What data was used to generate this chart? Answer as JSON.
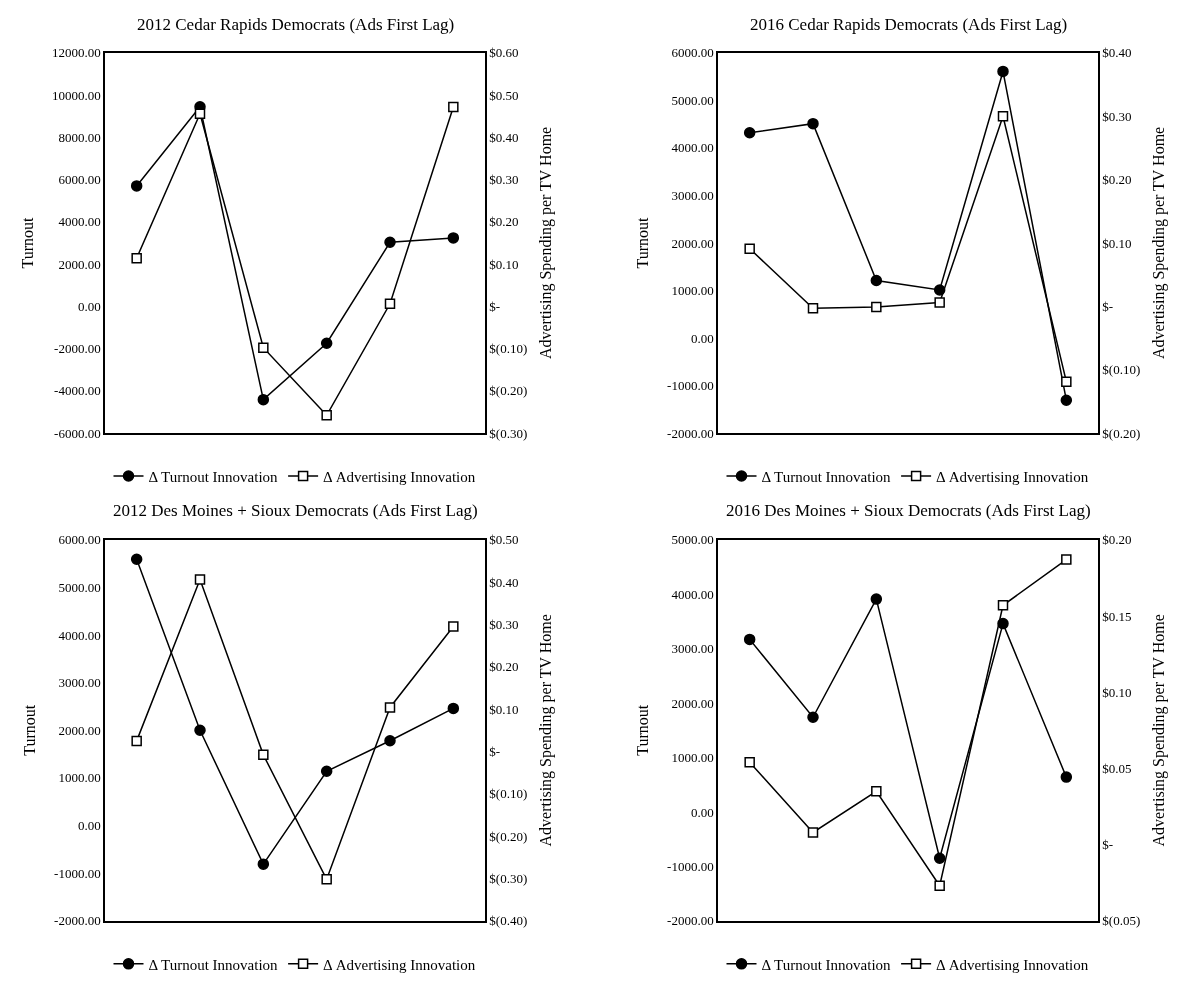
{
  "chart_data": [
    {
      "type": "line",
      "title": "2012 Cedar Rapids Democrats (Ads First Lag)",
      "ylabel": "Turnout",
      "y2label": "Advertising Spending per TV Home",
      "categories": [
        null,
        null,
        null,
        null,
        null,
        null
      ],
      "legend": "bottom",
      "series": [
        {
          "name": "Δ Turnout Innovation",
          "color": "#000000",
          "marker": "circle",
          "values": [
            5700,
            9450,
            -4420,
            -1750,
            3030,
            3240
          ]
        },
        {
          "name": "Δ Advertising Innovation",
          "color": "#000000",
          "marker": "square",
          "axis": "y2",
          "values": [
            0.114,
            0.456,
            -0.098,
            -0.258,
            0.006,
            0.472
          ]
        }
      ],
      "ylim": [
        -6000,
        12000
      ],
      "yticks": [
        {
          "value": -6000,
          "label": "-6000.00"
        },
        {
          "value": -4000,
          "label": "-4000.00"
        },
        {
          "value": -2000,
          "label": "-2000.00"
        },
        {
          "value": 0,
          "label": "0.00"
        },
        {
          "value": 2000,
          "label": "2000.00"
        },
        {
          "value": 4000,
          "label": "4000.00"
        },
        {
          "value": 6000,
          "label": "6000.00"
        },
        {
          "value": 8000,
          "label": "8000.00"
        },
        {
          "value": 10000,
          "label": "10000.00"
        },
        {
          "value": 12000,
          "label": "12000.00"
        }
      ],
      "y2lim": [
        -0.3,
        0.6
      ],
      "y2ticks": [
        {
          "value": -0.3,
          "label": "$(0.30)"
        },
        {
          "value": -0.2,
          "label": "$(0.20)"
        },
        {
          "value": -0.1,
          "label": "$(0.10)"
        },
        {
          "value": 0,
          "label": "$-"
        },
        {
          "value": 0.1,
          "label": "$0.10"
        },
        {
          "value": 0.2,
          "label": "$0.20"
        },
        {
          "value": 0.3,
          "label": "$0.30"
        },
        {
          "value": 0.4,
          "label": "$0.40"
        },
        {
          "value": 0.5,
          "label": "$0.50"
        },
        {
          "value": 0.6,
          "label": "$0.60"
        }
      ]
    },
    {
      "type": "line",
      "title": "2016 Cedar Rapids Democrats (Ads First Lag)",
      "ylabel": "Turnout",
      "y2label": "Advertising Spending per TV Home",
      "categories": [
        null,
        null,
        null,
        null,
        null,
        null
      ],
      "legend": "bottom",
      "series": [
        {
          "name": "Δ Turnout Innovation",
          "color": "#000000",
          "marker": "circle",
          "values": [
            4320,
            4510,
            1210,
            1010,
            5610,
            -1310
          ]
        },
        {
          "name": "Δ Advertising Innovation",
          "color": "#000000",
          "marker": "square",
          "axis": "y2",
          "values": [
            0.091,
            -0.003,
            -0.001,
            0.006,
            0.3,
            -0.119
          ]
        }
      ],
      "ylim": [
        -2000,
        6000
      ],
      "yticks": [
        {
          "value": -2000,
          "label": "-2000.00"
        },
        {
          "value": -1000,
          "label": "-1000.00"
        },
        {
          "value": 0,
          "label": "0.00"
        },
        {
          "value": 1000,
          "label": "1000.00"
        },
        {
          "value": 2000,
          "label": "2000.00"
        },
        {
          "value": 3000,
          "label": "3000.00"
        },
        {
          "value": 4000,
          "label": "4000.00"
        },
        {
          "value": 5000,
          "label": "5000.00"
        },
        {
          "value": 6000,
          "label": "6000.00"
        }
      ],
      "y2lim": [
        -0.2,
        0.4
      ],
      "y2ticks": [
        {
          "value": -0.2,
          "label": "$(0.20)"
        },
        {
          "value": -0.1,
          "label": "$(0.10)"
        },
        {
          "value": 0,
          "label": "$-"
        },
        {
          "value": 0.1,
          "label": "$0.10"
        },
        {
          "value": 0.2,
          "label": "$0.20"
        },
        {
          "value": 0.3,
          "label": "$0.30"
        },
        {
          "value": 0.4,
          "label": "$0.40"
        }
      ]
    },
    {
      "type": "line",
      "title": "2012 Des Moines + Sioux Democrats (Ads First Lag)",
      "ylabel": "Turnout",
      "y2label": "Advertising Spending per TV Home",
      "categories": [
        null,
        null,
        null,
        null,
        null,
        null
      ],
      "legend": "bottom",
      "series": [
        {
          "name": "Δ Turnout Innovation",
          "color": "#000000",
          "marker": "circle",
          "values": [
            5590,
            2000,
            -810,
            1140,
            1780,
            2460
          ]
        },
        {
          "name": "Δ Advertising Innovation",
          "color": "#000000",
          "marker": "square",
          "axis": "y2",
          "values": [
            0.025,
            0.406,
            -0.008,
            -0.302,
            0.104,
            0.295
          ]
        }
      ],
      "ylim": [
        -2000,
        6000
      ],
      "yticks": [
        {
          "value": -2000,
          "label": "-2000.00"
        },
        {
          "value": -1000,
          "label": "-1000.00"
        },
        {
          "value": 0,
          "label": "0.00"
        },
        {
          "value": 1000,
          "label": "1000.00"
        },
        {
          "value": 2000,
          "label": "2000.00"
        },
        {
          "value": 3000,
          "label": "3000.00"
        },
        {
          "value": 4000,
          "label": "4000.00"
        },
        {
          "value": 5000,
          "label": "5000.00"
        },
        {
          "value": 6000,
          "label": "6000.00"
        }
      ],
      "y2lim": [
        -0.4,
        0.5
      ],
      "y2ticks": [
        {
          "value": -0.4,
          "label": "$(0.40)"
        },
        {
          "value": -0.3,
          "label": "$(0.30)"
        },
        {
          "value": -0.2,
          "label": "$(0.20)"
        },
        {
          "value": -0.1,
          "label": "$(0.10)"
        },
        {
          "value": 0,
          "label": "$-"
        },
        {
          "value": 0.1,
          "label": "$0.10"
        },
        {
          "value": 0.2,
          "label": "$0.20"
        },
        {
          "value": 0.3,
          "label": "$0.30"
        },
        {
          "value": 0.4,
          "label": "$0.40"
        },
        {
          "value": 0.5,
          "label": "$0.50"
        }
      ]
    },
    {
      "type": "line",
      "title": "2016 Des Moines + Sioux Democrats (Ads First Lag)",
      "ylabel": "Turnout",
      "y2label": "Advertising Spending per TV Home",
      "categories": [
        null,
        null,
        null,
        null,
        null,
        null
      ],
      "legend": "bottom",
      "series": [
        {
          "name": "Δ Turnout Innovation",
          "color": "#000000",
          "marker": "circle",
          "values": [
            3170,
            1740,
            3910,
            -850,
            3460,
            640
          ]
        },
        {
          "name": "Δ Advertising Innovation",
          "color": "#000000",
          "marker": "square",
          "axis": "y2",
          "values": [
            0.054,
            0.008,
            0.035,
            -0.027,
            0.157,
            0.187
          ]
        }
      ],
      "ylim": [
        -2000,
        5000
      ],
      "yticks": [
        {
          "value": -2000,
          "label": "-2000.00"
        },
        {
          "value": -1000,
          "label": "-1000.00"
        },
        {
          "value": 0,
          "label": "0.00"
        },
        {
          "value": 1000,
          "label": "1000.00"
        },
        {
          "value": 2000,
          "label": "2000.00"
        },
        {
          "value": 3000,
          "label": "3000.00"
        },
        {
          "value": 4000,
          "label": "4000.00"
        },
        {
          "value": 5000,
          "label": "5000.00"
        }
      ],
      "y2lim": [
        -0.05,
        0.2
      ],
      "y2ticks": [
        {
          "value": -0.05,
          "label": "$(0.05)"
        },
        {
          "value": 0,
          "label": "$-"
        },
        {
          "value": 0.05,
          "label": "$0.05"
        },
        {
          "value": 0.1,
          "label": "$0.10"
        },
        {
          "value": 0.15,
          "label": "$0.15"
        },
        {
          "value": 0.2,
          "label": "$0.20"
        }
      ]
    }
  ]
}
